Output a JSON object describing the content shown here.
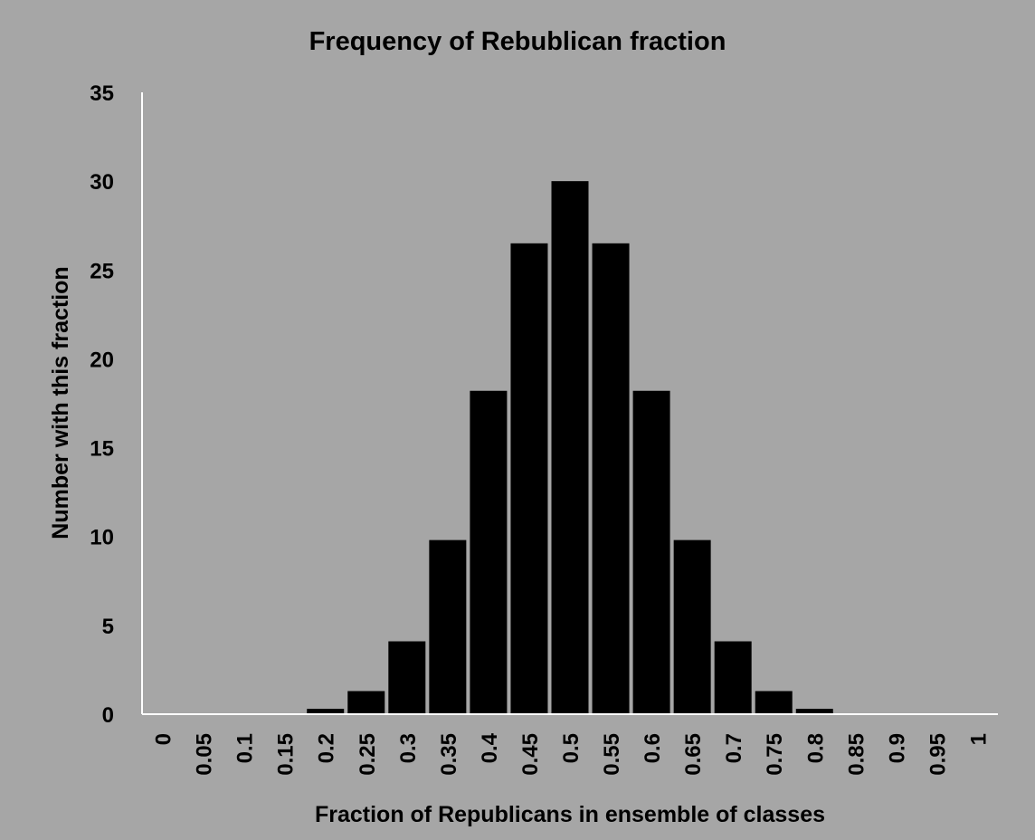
{
  "chart_data": {
    "type": "bar",
    "title": "Frequency of Rebublican fraction",
    "xlabel": "Fraction of Republicans in ensemble of classes",
    "ylabel": "Number with this fraction",
    "categories": [
      "0",
      "0.05",
      "0.1",
      "0.15",
      "0.2",
      "0.25",
      "0.3",
      "0.35",
      "0.4",
      "0.45",
      "0.5",
      "0.55",
      "0.6",
      "0.65",
      "0.7",
      "0.75",
      "0.8",
      "0.85",
      "0.9",
      "0.95",
      "1"
    ],
    "values": [
      0,
      0,
      0,
      0,
      0.3,
      1.3,
      4.1,
      9.8,
      18.2,
      26.5,
      30,
      26.5,
      18.2,
      9.8,
      4.1,
      1.3,
      0.3,
      0,
      0,
      0,
      0
    ],
    "ylim": [
      0,
      35
    ],
    "yticks": [
      "0",
      "5",
      "10",
      "15",
      "20",
      "25",
      "30",
      "35"
    ],
    "grid": false,
    "legend": "none",
    "bar_color": "#000000",
    "background_color": "#a6a6a6",
    "axis_color": "#ffffff"
  }
}
